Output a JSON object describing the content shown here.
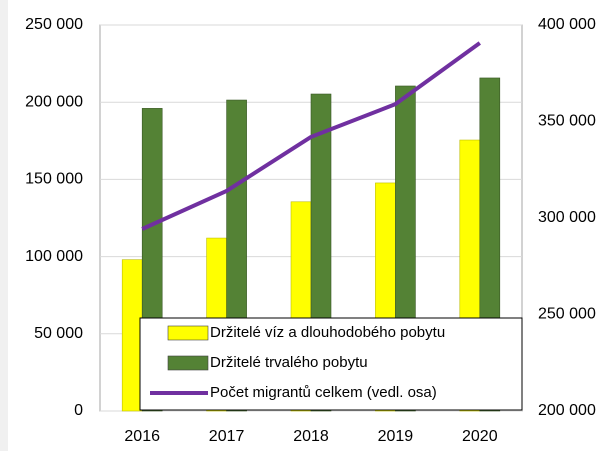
{
  "chart_data": {
    "type": "bar",
    "categories": [
      "2016",
      "2017",
      "2018",
      "2019",
      "2020"
    ],
    "series": [
      {
        "name": "Držitelé víz a dlouhodobého pobytu",
        "color": "#ffff00",
        "values": [
          98000,
          112000,
          135500,
          147700,
          175500
        ]
      },
      {
        "name": "Držitelé trvalého pobytu",
        "color": "#548235",
        "values": [
          196000,
          201400,
          205300,
          210500,
          215700
        ]
      },
      {
        "name": "Počet migrantů celkem (vedl. osa)",
        "type": "line",
        "axis": "y2",
        "color": "#7030a0",
        "values": [
          294300,
          314000,
          342000,
          359000,
          390700
        ]
      }
    ],
    "ylim": [
      0,
      250000
    ],
    "yticks": [
      0,
      {
        "value": 50000,
        "label": "50 000"
      },
      {
        "value": 100000,
        "label": "100 000"
      },
      {
        "value": 150000,
        "label": "150 000"
      },
      {
        "value": 200000,
        "label": "200 000"
      },
      {
        "value": 250000,
        "label": "250 000"
      }
    ],
    "y2lim": [
      200000,
      400000
    ],
    "y2ticks": [
      {
        "value": 200000,
        "label": "200 000"
      },
      {
        "value": 250000,
        "label": "250 000"
      },
      {
        "value": 300000,
        "label": "300 000"
      },
      {
        "value": 350000,
        "label": "350 000"
      },
      {
        "value": 400000,
        "label": "400 000"
      }
    ],
    "grid": true,
    "legend": "lower right"
  }
}
